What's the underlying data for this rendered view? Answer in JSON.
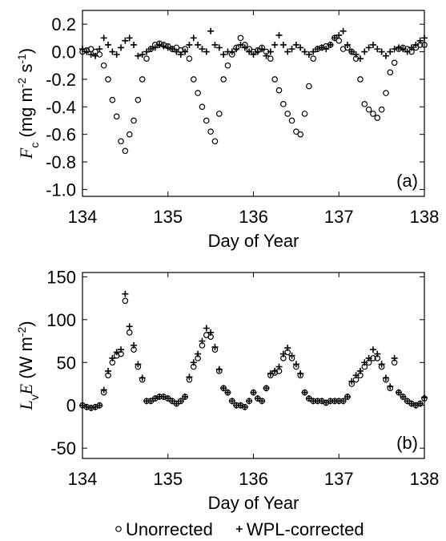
{
  "chart_data": [
    {
      "type": "scatter",
      "ylabel": [
        "F",
        "c",
        " (mg m",
        "-2",
        " s",
        "-1",
        ")"
      ],
      "xlabel": "Day of Year",
      "annotation": "(a)",
      "x": [
        134,
        134.05,
        134.1,
        134.15,
        134.2,
        134.25,
        134.3,
        134.35,
        134.4,
        134.45,
        134.5,
        134.55,
        134.6,
        134.65,
        134.7,
        134.75,
        134.8,
        134.85,
        134.9,
        134.95,
        135,
        135.05,
        135.1,
        135.15,
        135.2,
        135.25,
        135.3,
        135.35,
        135.4,
        135.45,
        135.5,
        135.55,
        135.6,
        135.65,
        135.7,
        135.75,
        135.8,
        135.85,
        135.9,
        135.95,
        136,
        136.05,
        136.1,
        136.15,
        136.2,
        136.25,
        136.3,
        136.35,
        136.4,
        136.45,
        136.5,
        136.55,
        136.6,
        136.65,
        136.7,
        136.75,
        136.8,
        136.85,
        136.9,
        136.95,
        137,
        137.05,
        137.1,
        137.15,
        137.2,
        137.25,
        137.3,
        137.35,
        137.4,
        137.45,
        137.5,
        137.55,
        137.6,
        137.65,
        137.7,
        137.75,
        137.8,
        137.85,
        137.9,
        137.95,
        138
      ],
      "series": [
        {
          "marker": "circle",
          "color": "#000000",
          "values": [
            0,
            0.01,
            0.02,
            0,
            -0.02,
            -0.1,
            -0.2,
            -0.35,
            -0.47,
            -0.65,
            -0.72,
            -0.6,
            -0.5,
            -0.35,
            -0.2,
            -0.05,
            0.02,
            0.05,
            0.06,
            0.05,
            0.04,
            0.02,
            0.03,
            0.01,
            0.02,
            -0.05,
            -0.2,
            -0.3,
            -0.4,
            -0.5,
            -0.58,
            -0.65,
            -0.45,
            -0.2,
            -0.1,
            -0.02,
            0.03,
            0.1,
            0.05,
            0.02,
            0,
            0.01,
            0.03,
            0,
            -0.05,
            -0.2,
            -0.28,
            -0.38,
            -0.45,
            -0.5,
            -0.58,
            -0.6,
            -0.45,
            -0.25,
            -0.05,
            0.02,
            0.03,
            0.04,
            0.05,
            0.1,
            0.08,
            0.02,
            0.03,
            0,
            -0.05,
            -0.2,
            -0.38,
            -0.42,
            -0.45,
            -0.48,
            -0.42,
            -0.3,
            -0.15,
            -0.08,
            0.02,
            0.03,
            0.02,
            0,
            0.03,
            0.05,
            0.05
          ]
        },
        {
          "marker": "plus",
          "color": "#000000",
          "values": [
            0.02,
            0,
            -0.02,
            -0.03,
            0.02,
            0.1,
            0.05,
            0,
            -0.02,
            0.03,
            0.08,
            0.1,
            0.05,
            -0.03,
            -0.02,
            0,
            0.02,
            0.03,
            0.05,
            0.04,
            0.03,
            0.02,
            0,
            -0.02,
            0,
            0.05,
            0.1,
            0.05,
            0.02,
            0,
            0.15,
            0.05,
            0.03,
            -0.02,
            0,
            0,
            0.02,
            0.05,
            0.03,
            0,
            -0.02,
            0,
            0.02,
            -0.03,
            0,
            0.05,
            0.12,
            0.05,
            0,
            0.02,
            0.05,
            0.03,
            0,
            -0.02,
            0,
            0.02,
            0.03,
            0.02,
            0.05,
            0.1,
            0.12,
            0.15,
            0.05,
            0,
            -0.02,
            -0.05,
            0,
            0.03,
            0.05,
            0.02,
            0,
            -0.03,
            0,
            0.02,
            0.03,
            0.02,
            0,
            0.03,
            0.05,
            0.08,
            0.1
          ]
        }
      ],
      "xlim": [
        134,
        138
      ],
      "xticks": [
        134,
        135,
        136,
        137,
        138
      ],
      "ylim": [
        -1.05,
        0.3
      ],
      "yticks": [
        0.2,
        {
          "value": 0,
          "label": "0.0"
        },
        -0.2,
        -0.4,
        -0.6,
        -0.8,
        {
          "value": -1,
          "label": "-1.0"
        }
      ]
    },
    {
      "type": "scatter",
      "ylabel": [
        "L",
        "v",
        "E",
        " (W m",
        "-2",
        ")"
      ],
      "xlabel": "Day of Year",
      "annotation": "(b)",
      "x": [
        134,
        134.05,
        134.1,
        134.15,
        134.2,
        134.25,
        134.3,
        134.35,
        134.4,
        134.45,
        134.5,
        134.55,
        134.6,
        134.65,
        134.7,
        134.75,
        134.8,
        134.85,
        134.9,
        134.95,
        135,
        135.05,
        135.1,
        135.15,
        135.2,
        135.25,
        135.3,
        135.35,
        135.4,
        135.45,
        135.5,
        135.55,
        135.6,
        135.65,
        135.7,
        135.75,
        135.8,
        135.85,
        135.9,
        135.95,
        136,
        136.05,
        136.1,
        136.15,
        136.2,
        136.25,
        136.3,
        136.35,
        136.4,
        136.45,
        136.5,
        136.55,
        136.6,
        136.65,
        136.7,
        136.75,
        136.8,
        136.85,
        136.9,
        136.95,
        137,
        137.05,
        137.1,
        137.15,
        137.2,
        137.25,
        137.3,
        137.35,
        137.4,
        137.45,
        137.5,
        137.55,
        137.6,
        137.65,
        137.7,
        137.75,
        137.8,
        137.85,
        137.9,
        137.95,
        138
      ],
      "series": [
        {
          "name": "Unorrected",
          "marker": "circle",
          "color": "#000000",
          "values": [
            0,
            -2,
            -3,
            -2,
            0,
            15,
            35,
            50,
            58,
            60,
            122,
            85,
            65,
            45,
            30,
            5,
            5,
            8,
            10,
            10,
            8,
            5,
            2,
            5,
            10,
            30,
            45,
            55,
            70,
            82,
            80,
            65,
            40,
            20,
            15,
            5,
            0,
            0,
            -2,
            5,
            15,
            8,
            5,
            20,
            35,
            38,
            40,
            55,
            62,
            55,
            45,
            35,
            15,
            8,
            5,
            5,
            5,
            3,
            5,
            5,
            5,
            5,
            10,
            25,
            30,
            35,
            45,
            50,
            55,
            55,
            45,
            30,
            20,
            50,
            15,
            10,
            5,
            2,
            0,
            2,
            8
          ]
        },
        {
          "name": "WPL-corrected",
          "marker": "plus",
          "color": "#000000",
          "values": [
            0,
            -2,
            -3,
            -2,
            0,
            18,
            40,
            55,
            62,
            65,
            130,
            92,
            70,
            48,
            32,
            5,
            5,
            8,
            10,
            10,
            8,
            5,
            2,
            5,
            10,
            33,
            50,
            60,
            75,
            90,
            85,
            68,
            42,
            20,
            15,
            5,
            0,
            0,
            -2,
            5,
            15,
            8,
            5,
            20,
            37,
            40,
            45,
            60,
            67,
            58,
            48,
            37,
            15,
            8,
            5,
            5,
            5,
            3,
            5,
            5,
            5,
            5,
            10,
            28,
            35,
            40,
            50,
            55,
            65,
            60,
            48,
            32,
            22,
            55,
            15,
            10,
            5,
            2,
            0,
            2,
            9
          ]
        }
      ],
      "xlim": [
        134,
        138
      ],
      "xticks": [
        134,
        135,
        136,
        137,
        138
      ],
      "ylim": [
        -62,
        155
      ],
      "yticks": [
        150,
        100,
        50,
        0,
        -50
      ]
    }
  ]
}
